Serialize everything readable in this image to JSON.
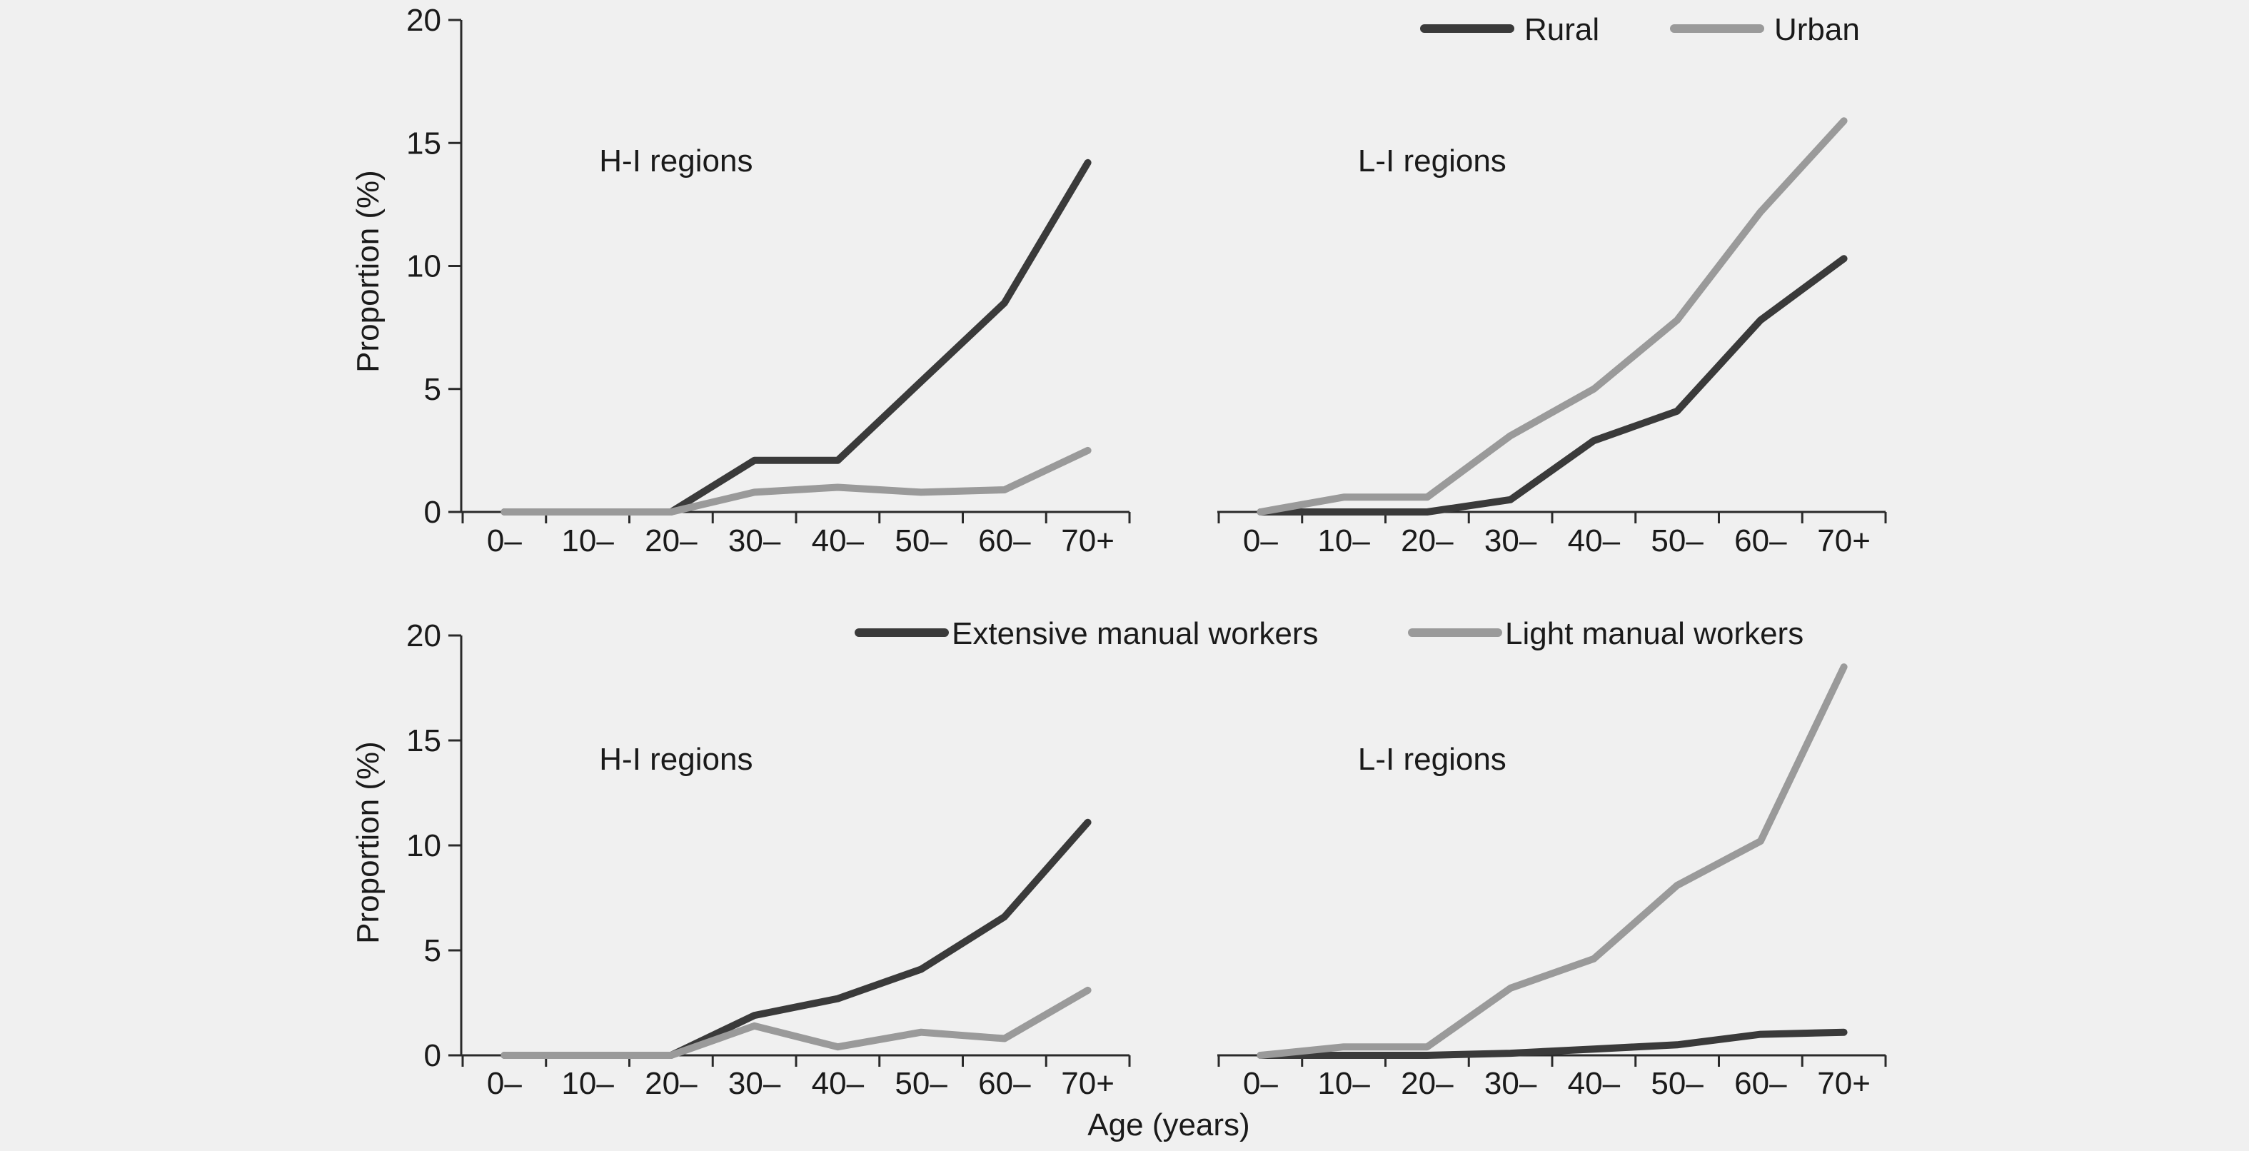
{
  "panels": [
    {
      "id": "top",
      "ylabel": "Proportion (%)",
      "xlabel": "",
      "legend": [
        "Rural",
        "Urban"
      ],
      "charts": [
        {
          "type": "line",
          "annotation": "H-I  regions",
          "categories": [
            "0–",
            "10–",
            "20–",
            "30–",
            "40–",
            "50–",
            "60–",
            "70+"
          ],
          "ylim": [
            0,
            20
          ],
          "yticks": [
            0,
            5,
            10,
            15,
            20
          ],
          "series": [
            {
              "name": "Rural",
              "color": "#3a3a3a",
              "values": [
                0,
                0,
                0,
                2.1,
                2.1,
                5.3,
                8.5,
                14.2
              ]
            },
            {
              "name": "Urban",
              "color": "#9a9a9a",
              "values": [
                0,
                0,
                0,
                0.8,
                1.0,
                0.8,
                0.9,
                2.5
              ]
            }
          ]
        },
        {
          "type": "line",
          "annotation": "L-I  regions",
          "categories": [
            "0–",
            "10–",
            "20–",
            "30–",
            "40–",
            "50–",
            "60–",
            "70+"
          ],
          "ylim": [
            0,
            20
          ],
          "yticks": [],
          "series": [
            {
              "name": "Rural",
              "color": "#3a3a3a",
              "values": [
                0,
                0,
                0,
                0.5,
                2.9,
                4.1,
                7.8,
                10.3
              ]
            },
            {
              "name": "Urban",
              "color": "#9a9a9a",
              "values": [
                0,
                0.6,
                0.6,
                3.1,
                5.0,
                7.8,
                12.2,
                15.9
              ]
            }
          ]
        }
      ]
    },
    {
      "id": "bottom",
      "ylabel": "Proportion (%)",
      "xlabel": "Age (years)",
      "legend": [
        "Extensive manual workers",
        "Light manual workers"
      ],
      "charts": [
        {
          "type": "line",
          "annotation": "H-I  regions",
          "categories": [
            "0–",
            "10–",
            "20–",
            "30–",
            "40–",
            "50–",
            "60–",
            "70+"
          ],
          "ylim": [
            0,
            20
          ],
          "yticks": [
            0,
            5,
            10,
            15,
            20
          ],
          "series": [
            {
              "name": "Extensive manual workers",
              "color": "#3a3a3a",
              "values": [
                0,
                0,
                0,
                1.9,
                2.7,
                4.1,
                6.6,
                11.1
              ]
            },
            {
              "name": "Light manual workers",
              "color": "#9a9a9a",
              "values": [
                0,
                0,
                0,
                1.4,
                0.4,
                1.1,
                0.8,
                3.1
              ]
            }
          ]
        },
        {
          "type": "line",
          "annotation": "L-I  regions",
          "categories": [
            "0–",
            "10–",
            "20–",
            "30–",
            "40–",
            "50–",
            "60–",
            "70+"
          ],
          "ylim": [
            0,
            20
          ],
          "yticks": [],
          "series": [
            {
              "name": "Extensive manual workers",
              "color": "#3a3a3a",
              "values": [
                0,
                0,
                0,
                0.1,
                0.3,
                0.5,
                1.0,
                1.1
              ]
            },
            {
              "name": "Light manual workers",
              "color": "#9a9a9a",
              "values": [
                0,
                0.4,
                0.4,
                3.2,
                4.6,
                8.1,
                10.2,
                18.5
              ]
            }
          ]
        }
      ]
    }
  ]
}
